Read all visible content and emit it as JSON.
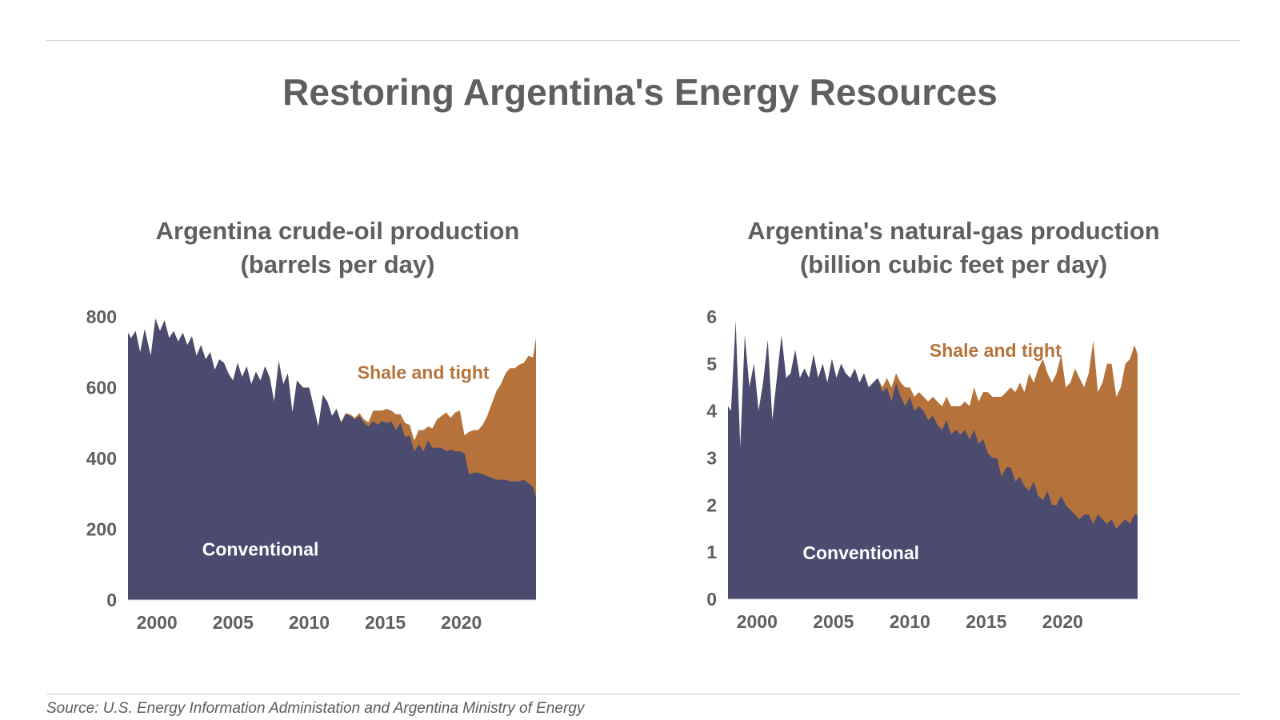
{
  "title": "Restoring Argentina's Energy Resources",
  "source": "Source: U.S. Energy Information Administation and Argentina Ministry of Energy",
  "colors": {
    "conventional": "#4a4b6e",
    "shale": "#b5733b",
    "text": "#5f5f5f",
    "axis_text": "#5f5f5f"
  },
  "chart_data": [
    {
      "type": "area",
      "title_line1": "Argentina crude-oil production",
      "title_line2": "(barrels per day)",
      "xlim": [
        1998.1,
        2024.9
      ],
      "ylim": [
        0,
        800
      ],
      "yticks": [
        0,
        200,
        400,
        600,
        800
      ],
      "xticks": [
        2000,
        2005,
        2010,
        2015,
        2020
      ],
      "stacked": true,
      "series": [
        {
          "name": "Conventional",
          "label_at": [
            2006.8,
            125
          ],
          "x": [
            1998.1,
            1998.3,
            1998.6,
            1998.9,
            1999.2,
            1999.6,
            1999.9,
            2000.2,
            2000.5,
            2000.8,
            2001.1,
            2001.4,
            2001.7,
            2002.0,
            2002.3,
            2002.6,
            2002.9,
            2003.2,
            2003.5,
            2003.8,
            2004.1,
            2004.4,
            2004.7,
            2005.0,
            2005.3,
            2005.6,
            2005.9,
            2006.2,
            2006.5,
            2006.8,
            2007.1,
            2007.4,
            2007.7,
            2008.0,
            2008.3,
            2008.6,
            2008.9,
            2009.2,
            2009.6,
            2010.0,
            2010.3,
            2010.6,
            2010.9,
            2011.2,
            2011.5,
            2011.8,
            2012.1,
            2012.4,
            2012.7,
            2013.0,
            2013.3,
            2013.6,
            2013.9,
            2014.2,
            2014.5,
            2014.8,
            2015.1,
            2015.4,
            2015.7,
            2016.0,
            2016.3,
            2016.6,
            2016.9,
            2017.2,
            2017.5,
            2017.8,
            2018.1,
            2018.4,
            2018.7,
            2019.0,
            2019.3,
            2019.6,
            2019.9,
            2020.2,
            2020.5,
            2020.8,
            2021.1,
            2021.4,
            2021.7,
            2022.0,
            2022.3,
            2022.6,
            2022.9,
            2023.2,
            2023.5,
            2023.8,
            2024.1,
            2024.4,
            2024.7,
            2024.9
          ],
          "values": [
            755,
            740,
            760,
            700,
            765,
            690,
            795,
            760,
            790,
            740,
            760,
            730,
            755,
            720,
            745,
            690,
            720,
            680,
            700,
            650,
            680,
            670,
            640,
            620,
            670,
            630,
            660,
            610,
            645,
            620,
            660,
            630,
            560,
            675,
            610,
            640,
            530,
            620,
            600,
            600,
            545,
            490,
            580,
            560,
            520,
            540,
            500,
            525,
            520,
            510,
            520,
            500,
            490,
            505,
            495,
            505,
            500,
            505,
            480,
            500,
            460,
            465,
            420,
            440,
            420,
            450,
            430,
            430,
            430,
            420,
            425,
            420,
            420,
            415,
            355,
            360,
            360,
            355,
            350,
            345,
            340,
            340,
            340,
            335,
            335,
            335,
            340,
            330,
            320,
            290
          ]
        },
        {
          "name": "Shale and tight",
          "label_at": [
            2017.5,
            625
          ],
          "x": [
            1998.1,
            1998.3,
            1998.6,
            1998.9,
            1999.2,
            1999.6,
            1999.9,
            2000.2,
            2000.5,
            2000.8,
            2001.1,
            2001.4,
            2001.7,
            2002.0,
            2002.3,
            2002.6,
            2002.9,
            2003.2,
            2003.5,
            2003.8,
            2004.1,
            2004.4,
            2004.7,
            2005.0,
            2005.3,
            2005.6,
            2005.9,
            2006.2,
            2006.5,
            2006.8,
            2007.1,
            2007.4,
            2007.7,
            2008.0,
            2008.3,
            2008.6,
            2008.9,
            2009.2,
            2009.6,
            2010.0,
            2010.3,
            2010.6,
            2010.9,
            2011.2,
            2011.5,
            2011.8,
            2012.1,
            2012.4,
            2012.7,
            2013.0,
            2013.3,
            2013.6,
            2013.9,
            2014.2,
            2014.5,
            2014.8,
            2015.1,
            2015.4,
            2015.7,
            2016.0,
            2016.3,
            2016.6,
            2016.9,
            2017.2,
            2017.5,
            2017.8,
            2018.1,
            2018.4,
            2018.7,
            2019.0,
            2019.3,
            2019.6,
            2019.9,
            2020.2,
            2020.5,
            2020.8,
            2021.1,
            2021.4,
            2021.7,
            2022.0,
            2022.3,
            2022.6,
            2022.9,
            2023.2,
            2023.5,
            2023.8,
            2024.1,
            2024.4,
            2024.7,
            2024.9
          ],
          "values": [
            0,
            0,
            0,
            0,
            0,
            0,
            0,
            0,
            0,
            0,
            0,
            0,
            0,
            0,
            0,
            0,
            0,
            0,
            0,
            0,
            0,
            0,
            0,
            0,
            0,
            0,
            0,
            0,
            0,
            0,
            0,
            0,
            0,
            0,
            0,
            0,
            0,
            0,
            0,
            0,
            0,
            0,
            0,
            0,
            0,
            0,
            3,
            3,
            4,
            5,
            8,
            10,
            12,
            30,
            40,
            30,
            40,
            30,
            45,
            25,
            40,
            30,
            30,
            40,
            60,
            40,
            55,
            80,
            90,
            110,
            90,
            110,
            115,
            50,
            120,
            120,
            120,
            140,
            170,
            210,
            250,
            270,
            300,
            320,
            320,
            330,
            330,
            360,
            365,
            450
          ]
        }
      ]
    },
    {
      "type": "area",
      "title_line1": "Argentina's natural-gas production",
      "title_line2": "(billion cubic feet per day)",
      "xlim": [
        1998.1,
        2024.9
      ],
      "ylim": [
        0,
        6
      ],
      "yticks": [
        0,
        1,
        2,
        3,
        4,
        5,
        6
      ],
      "xticks": [
        2000,
        2005,
        2010,
        2015,
        2020
      ],
      "stacked": true,
      "series": [
        {
          "name": "Conventional",
          "label_at": [
            2006.8,
            0.85
          ],
          "x": [
            1998.1,
            1998.3,
            1998.6,
            1998.9,
            1999.2,
            1999.5,
            1999.8,
            2000.1,
            2000.4,
            2000.7,
            2001.0,
            2001.3,
            2001.6,
            2001.9,
            2002.2,
            2002.5,
            2002.8,
            2003.1,
            2003.4,
            2003.7,
            2004.0,
            2004.3,
            2004.6,
            2004.9,
            2005.2,
            2005.5,
            2005.8,
            2006.1,
            2006.4,
            2006.7,
            2007.0,
            2007.3,
            2007.6,
            2007.9,
            2008.2,
            2008.5,
            2008.8,
            2009.1,
            2009.4,
            2009.7,
            2010.0,
            2010.3,
            2010.6,
            2010.9,
            2011.2,
            2011.5,
            2011.8,
            2012.1,
            2012.4,
            2012.7,
            2013.0,
            2013.3,
            2013.6,
            2013.9,
            2014.2,
            2014.5,
            2014.8,
            2015.1,
            2015.4,
            2015.7,
            2016.0,
            2016.3,
            2016.6,
            2016.9,
            2017.2,
            2017.5,
            2017.8,
            2018.1,
            2018.4,
            2018.7,
            2019.0,
            2019.3,
            2019.6,
            2019.9,
            2020.2,
            2020.5,
            2020.8,
            2021.1,
            2021.4,
            2021.7,
            2022.0,
            2022.3,
            2022.6,
            2022.9,
            2023.2,
            2023.5,
            2023.8,
            2024.1,
            2024.4,
            2024.7,
            2024.9
          ],
          "values": [
            4.1,
            4.0,
            5.9,
            3.2,
            5.6,
            4.5,
            5.0,
            4.0,
            4.6,
            5.5,
            3.8,
            4.7,
            5.6,
            4.7,
            4.8,
            5.3,
            4.7,
            4.9,
            4.7,
            5.2,
            4.7,
            5.0,
            4.6,
            5.1,
            4.7,
            5.0,
            4.8,
            4.7,
            4.9,
            4.6,
            4.8,
            4.5,
            4.6,
            4.7,
            4.4,
            4.5,
            4.2,
            4.6,
            4.3,
            4.1,
            4.3,
            4.0,
            4.1,
            4.0,
            3.8,
            3.9,
            3.7,
            3.6,
            3.8,
            3.5,
            3.6,
            3.5,
            3.6,
            3.4,
            3.6,
            3.3,
            3.4,
            3.1,
            3.0,
            3.0,
            2.6,
            2.8,
            2.8,
            2.5,
            2.6,
            2.4,
            2.3,
            2.5,
            2.2,
            2.1,
            2.3,
            2.0,
            2.0,
            2.2,
            2.0,
            1.9,
            1.8,
            1.7,
            1.8,
            1.8,
            1.6,
            1.8,
            1.7,
            1.6,
            1.7,
            1.5,
            1.6,
            1.7,
            1.6,
            1.8,
            1.8
          ]
        },
        {
          "name": "Shale and tight",
          "label_at": [
            2015.6,
            5.15
          ],
          "x": [
            1998.1,
            1998.3,
            1998.6,
            1998.9,
            1999.2,
            1999.5,
            1999.8,
            2000.1,
            2000.4,
            2000.7,
            2001.0,
            2001.3,
            2001.6,
            2001.9,
            2002.2,
            2002.5,
            2002.8,
            2003.1,
            2003.4,
            2003.7,
            2004.0,
            2004.3,
            2004.6,
            2004.9,
            2005.2,
            2005.5,
            2005.8,
            2006.1,
            2006.4,
            2006.7,
            2007.0,
            2007.3,
            2007.6,
            2007.9,
            2008.2,
            2008.5,
            2008.8,
            2009.1,
            2009.4,
            2009.7,
            2010.0,
            2010.3,
            2010.6,
            2010.9,
            2011.2,
            2011.5,
            2011.8,
            2012.1,
            2012.4,
            2012.7,
            2013.0,
            2013.3,
            2013.6,
            2013.9,
            2014.2,
            2014.5,
            2014.8,
            2015.1,
            2015.4,
            2015.7,
            2016.0,
            2016.3,
            2016.6,
            2016.9,
            2017.2,
            2017.5,
            2017.8,
            2018.1,
            2018.4,
            2018.7,
            2019.0,
            2019.3,
            2019.6,
            2019.9,
            2020.2,
            2020.5,
            2020.8,
            2021.1,
            2021.4,
            2021.7,
            2022.0,
            2022.3,
            2022.6,
            2022.9,
            2023.2,
            2023.5,
            2023.8,
            2024.1,
            2024.4,
            2024.7,
            2024.9
          ],
          "values": [
            0,
            0,
            0,
            0,
            0,
            0,
            0,
            0,
            0,
            0,
            0,
            0,
            0,
            0,
            0,
            0,
            0,
            0,
            0,
            0,
            0,
            0,
            0,
            0,
            0,
            0,
            0,
            0,
            0,
            0,
            0,
            0,
            0,
            0,
            0.1,
            0.2,
            0.3,
            0.2,
            0.3,
            0.4,
            0.2,
            0.3,
            0.3,
            0.3,
            0.4,
            0.4,
            0.5,
            0.5,
            0.5,
            0.6,
            0.5,
            0.6,
            0.6,
            0.7,
            0.9,
            0.9,
            1.0,
            1.3,
            1.3,
            1.3,
            1.7,
            1.6,
            1.7,
            1.9,
            2.0,
            2.0,
            2.5,
            2.1,
            2.7,
            3.0,
            2.5,
            2.6,
            2.8,
            3.0,
            2.5,
            2.7,
            3.1,
            3.0,
            2.7,
            3.0,
            3.9,
            2.6,
            2.9,
            3.4,
            3.3,
            2.8,
            2.9,
            3.3,
            3.5,
            3.6,
            3.4
          ]
        }
      ]
    }
  ]
}
